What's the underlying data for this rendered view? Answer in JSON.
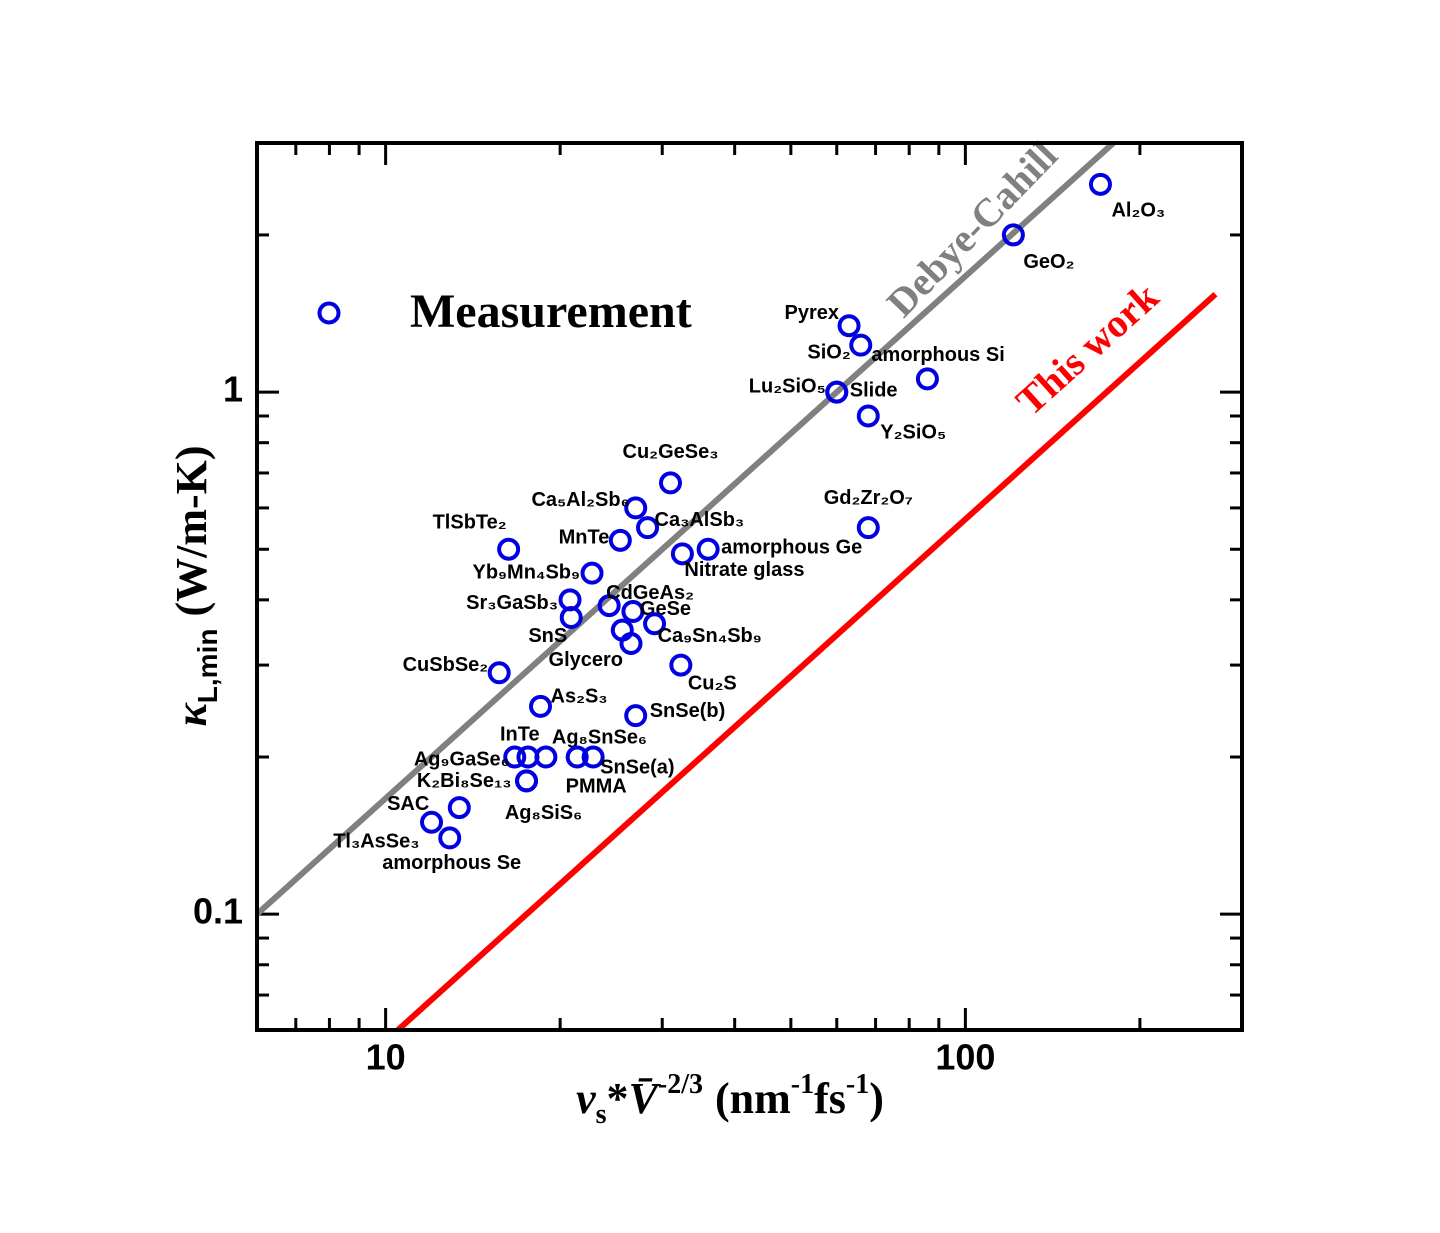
{
  "chart_data": {
    "type": "scatter",
    "x_label": [
      "v",
      "s",
      "*",
      "V̄",
      "-2/3",
      "(nm",
      "-1",
      "fs",
      "-1",
      ")"
    ],
    "y_label": [
      "κ",
      "L,min",
      "(W/m-K)"
    ],
    "xlim": [
      6,
      300
    ],
    "ylim": [
      0.06,
      3
    ],
    "xscale": "log",
    "yscale": "log",
    "xticks": [
      10,
      100
    ],
    "yticks": [
      0.1,
      1
    ],
    "x_minor_ticks": [
      6,
      7,
      8,
      9,
      20,
      30,
      40,
      50,
      60,
      70,
      80,
      90,
      200,
      300
    ],
    "y_minor_ticks": [
      0.06,
      0.07,
      0.08,
      0.09,
      0.2,
      0.3,
      0.4,
      0.5,
      0.6,
      0.7,
      0.8,
      0.9,
      2,
      3
    ],
    "legend": "upper left",
    "series": [
      {
        "name": "Measurement",
        "color": "#0000e0",
        "labels": [
          "Al₂O₃",
          "GeO₂",
          "Pyrex",
          "SiO₂",
          "amorphous  Si",
          "Lu₂SiO₅",
          "Slide",
          "Y₂SiO₅",
          "Gd₂Zr₂O₇",
          "Cu₂GeSe₃",
          "Ca₅Al₂Sb₆",
          "Ca₃AlSb₃",
          "MnTe",
          "TlSbTe₂",
          "amorphous  Ge",
          "Nitrate glass",
          "Yb₉Mn₄Sb₉",
          "CdGeAs₂",
          "Sr₃GaSb₃",
          "GeSe",
          "SnS",
          "Ca₉Sn₄Sb₉",
          null,
          "Glycero",
          "CuSbSe₂",
          "Cu₂S",
          "As₂S₃",
          "SnSe(b)",
          "Ag₉GaSe₆",
          "InTe",
          "Ag₈SnSe₆",
          "PMMA",
          "SnSe(a)",
          "K₂Bi₈Se₁₃",
          "Ag₈SiS₆",
          "SAC",
          "Tl₃AsSe₃",
          "amorphous Se"
        ],
        "x": [
          171,
          121,
          63,
          66,
          86,
          60,
          60,
          68,
          68,
          31,
          27,
          28.3,
          25.4,
          16.3,
          36,
          32.5,
          22.7,
          24.3,
          20.8,
          26.7,
          20.9,
          29.1,
          25.6,
          26.5,
          15.7,
          32.3,
          18.5,
          27,
          16.7,
          17.6,
          18.9,
          21.4,
          22.8,
          17.5,
          17.5,
          13.4,
          12.0,
          12.9
        ],
        "values": [
          2.5,
          2.0,
          1.34,
          1.23,
          1.06,
          1.0,
          1.0,
          0.9,
          0.55,
          0.67,
          0.6,
          0.55,
          0.52,
          0.5,
          0.5,
          0.49,
          0.45,
          0.39,
          0.4,
          0.38,
          0.37,
          0.36,
          0.35,
          0.33,
          0.29,
          0.3,
          0.25,
          0.24,
          0.2,
          0.2,
          0.2,
          0.2,
          0.2,
          0.18,
          0.18,
          0.16,
          0.15,
          0.14
        ]
      }
    ],
    "lines": [
      {
        "name": "Debye-Cahill",
        "color": "#808080",
        "x": [
          6,
          180
        ],
        "values": [
          0.1,
          3
        ]
      },
      {
        "name": "This work",
        "color": "#ff0000",
        "x": [
          10.5,
          270
        ],
        "values": [
          0.06,
          1.54
        ]
      }
    ]
  }
}
